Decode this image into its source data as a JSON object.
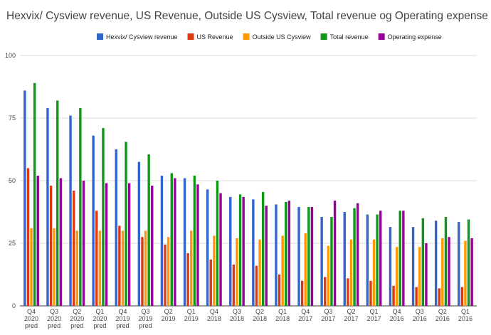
{
  "chart_data": {
    "type": "bar",
    "title": "Hexvix/ Cysview revenue, US Revenue, Outside US Cysview, Total revenue og Operating expense",
    "xlabel": "",
    "ylabel": "",
    "ylim": [
      0,
      100
    ],
    "yticks": [
      "0",
      "25",
      "50",
      "75",
      "100"
    ],
    "grid": true,
    "legend_position": "top",
    "categories": [
      [
        "Q4",
        "2020",
        "pred"
      ],
      [
        "Q3",
        "2020",
        "pred"
      ],
      [
        "Q2",
        "2020",
        "pred"
      ],
      [
        "Q1",
        "2020",
        "pred"
      ],
      [
        "Q4",
        "2019",
        "pred"
      ],
      [
        "Q3",
        "2019",
        "pred"
      ],
      [
        "Q2",
        "2019"
      ],
      [
        "Q1",
        "2019"
      ],
      [
        "Q4",
        "2018"
      ],
      [
        "Q3",
        "2018"
      ],
      [
        "Q2",
        "2018"
      ],
      [
        "Q1",
        "2018"
      ],
      [
        "Q4",
        "2017"
      ],
      [
        "Q3",
        "2017"
      ],
      [
        "Q2",
        "2017"
      ],
      [
        "Q1",
        "2017"
      ],
      [
        "Q4",
        "2016"
      ],
      [
        "Q3",
        "2016"
      ],
      [
        "Q2",
        "2016"
      ],
      [
        "Q1",
        "2016"
      ]
    ],
    "series": [
      {
        "name": "Hexvix/ Cysview revenue",
        "color": "#3366cc",
        "values": [
          86,
          79,
          76,
          68,
          62.5,
          57.5,
          52,
          51,
          46.5,
          43.5,
          42.5,
          40.5,
          39.5,
          35.5,
          37.5,
          36.5,
          31.5,
          31.5,
          34,
          33.5
        ]
      },
      {
        "name": "US Revenue",
        "color": "#dc3912",
        "values": [
          55,
          48,
          46,
          38,
          32,
          27.5,
          24.5,
          21,
          18.5,
          16.5,
          16,
          12.5,
          10,
          11.5,
          11,
          10,
          8,
          7.5,
          7,
          7.5
        ]
      },
      {
        "name": "Outside US Cysview",
        "color": "#ff9900",
        "values": [
          31,
          31,
          30,
          30,
          30,
          30,
          27.5,
          30,
          28,
          27,
          26.5,
          28,
          29,
          24,
          26.5,
          26.5,
          23.5,
          23.5,
          27,
          26
        ]
      },
      {
        "name": "Total revenue",
        "color": "#109618",
        "values": [
          89,
          82,
          79,
          71,
          65.5,
          60.5,
          53,
          52,
          50,
          44.5,
          45.5,
          41.5,
          39.5,
          35.5,
          39,
          36.5,
          38,
          35,
          35.5,
          34.5
        ]
      },
      {
        "name": "Operating expense",
        "color": "#990099",
        "values": [
          52,
          51,
          50,
          49,
          49,
          48,
          51,
          48.5,
          45,
          43.5,
          40,
          42,
          39.5,
          42,
          41,
          38,
          38,
          25,
          27.5,
          27
        ]
      }
    ]
  }
}
